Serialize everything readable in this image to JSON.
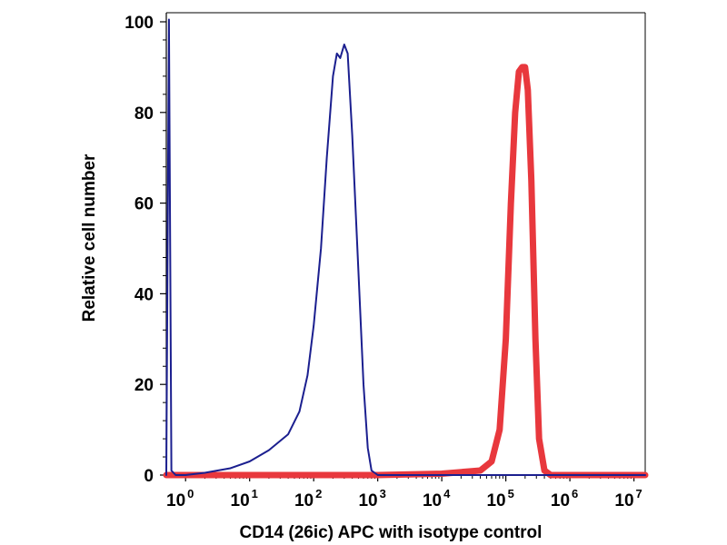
{
  "chart_data": {
    "type": "line",
    "title": "",
    "xlabel": "CD14 (26ic) APC with isotype control",
    "ylabel": "Relative cell number",
    "x_scale": "log",
    "xlim": [
      0.5,
      15000000
    ],
    "ylim": [
      0,
      100
    ],
    "grid": false,
    "legend": "none",
    "x_ticks": [
      {
        "base": "10",
        "exp": "0",
        "value": 1
      },
      {
        "base": "10",
        "exp": "1",
        "value": 10
      },
      {
        "base": "10",
        "exp": "2",
        "value": 100
      },
      {
        "base": "10",
        "exp": "3",
        "value": 1000
      },
      {
        "base": "10",
        "exp": "4",
        "value": 10000
      },
      {
        "base": "10",
        "exp": "5",
        "value": 100000
      },
      {
        "base": "10",
        "exp": "6",
        "value": 1000000
      },
      {
        "base": "10",
        "exp": "7",
        "value": 10000000
      }
    ],
    "y_ticks": [
      "0",
      "20",
      "40",
      "60",
      "80",
      "100"
    ],
    "series": [
      {
        "color": "#e8383d",
        "stroke_weight": "thick",
        "points": [
          [
            0.5,
            0
          ],
          [
            1000,
            0
          ],
          [
            10000,
            0.3
          ],
          [
            40000,
            1
          ],
          [
            60000,
            3
          ],
          [
            80000,
            10
          ],
          [
            100000,
            30
          ],
          [
            120000,
            60
          ],
          [
            140000,
            80
          ],
          [
            160000,
            89
          ],
          [
            180000,
            90
          ],
          [
            200000,
            90
          ],
          [
            220000,
            85
          ],
          [
            250000,
            65
          ],
          [
            290000,
            30
          ],
          [
            330000,
            8
          ],
          [
            400000,
            1
          ],
          [
            500000,
            0
          ],
          [
            15000000,
            0
          ]
        ]
      },
      {
        "color": "#1b1f8f",
        "stroke_weight": "thin",
        "points": [
          [
            0.5,
            0
          ],
          [
            0.55,
            100.5
          ],
          [
            0.6,
            1
          ],
          [
            0.7,
            0
          ],
          [
            1,
            0
          ],
          [
            2,
            0.5
          ],
          [
            5,
            1.5
          ],
          [
            10,
            3
          ],
          [
            20,
            5.5
          ],
          [
            40,
            9
          ],
          [
            60,
            14
          ],
          [
            80,
            22
          ],
          [
            100,
            33
          ],
          [
            130,
            50
          ],
          [
            160,
            70
          ],
          [
            200,
            88
          ],
          [
            230,
            93
          ],
          [
            260,
            92
          ],
          [
            300,
            95
          ],
          [
            340,
            93
          ],
          [
            400,
            75
          ],
          [
            500,
            45
          ],
          [
            600,
            20
          ],
          [
            700,
            6
          ],
          [
            800,
            1
          ],
          [
            1000,
            0
          ],
          [
            15000000,
            0
          ]
        ]
      }
    ]
  }
}
